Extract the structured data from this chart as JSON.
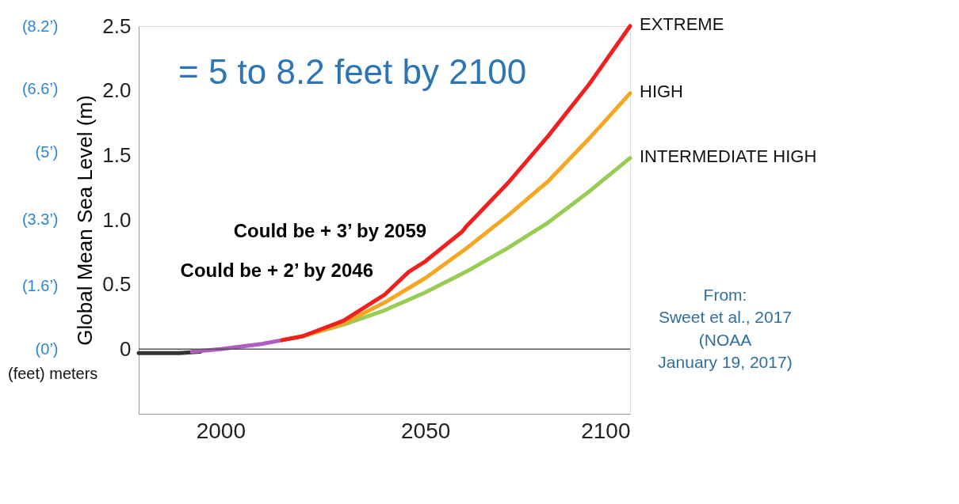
{
  "chart_data": {
    "type": "line",
    "ylabel": "Global Mean Sea Level (m)",
    "xlim": [
      1980,
      2100
    ],
    "xticks": [
      2000,
      2050,
      2100
    ],
    "ylim": [
      -0.5,
      2.5
    ],
    "yticks": [
      0,
      0.5,
      {
        "value": 1.0,
        "label": "1.0"
      },
      1.5,
      {
        "value": 2.0,
        "label": "2.0"
      },
      2.5
    ],
    "y2lim": [
      -1.64,
      8.2
    ],
    "y2ticks": [
      {
        "value": 0,
        "label": "(0’)"
      },
      {
        "value": 1.6,
        "label": "(1.6’)"
      },
      {
        "value": 3.3,
        "label": "(3.3’)"
      },
      {
        "value": 5,
        "label": "(5’)"
      },
      {
        "value": 6.6,
        "label": "(6.6’)"
      },
      {
        "value": 8.2,
        "label": "(8.2’)"
      }
    ],
    "grid": false,
    "legend": false,
    "series": [
      {
        "color": "#333333",
        "x": [
          1980,
          1985,
          1990,
          1995
        ],
        "values": [
          -0.03,
          -0.03,
          -0.03,
          -0.02
        ]
      },
      {
        "color": "#b05cc0",
        "x": [
          1993,
          2000,
          2005,
          2010,
          2015
        ],
        "values": [
          -0.02,
          0.0,
          0.02,
          0.04,
          0.07
        ]
      },
      {
        "name": "INTERMEDIATE HIGH",
        "color": "#99cc55",
        "x": [
          2015,
          2020,
          2030,
          2040,
          2050,
          2060,
          2070,
          2080,
          2090,
          2100
        ],
        "values": [
          0.07,
          0.1,
          0.19,
          0.3,
          0.44,
          0.6,
          0.78,
          0.98,
          1.22,
          1.48
        ]
      },
      {
        "name": "HIGH",
        "color": "#f5a623",
        "x": [
          2015,
          2020,
          2030,
          2040,
          2050,
          2060,
          2070,
          2080,
          2090,
          2100
        ],
        "values": [
          0.07,
          0.1,
          0.2,
          0.36,
          0.55,
          0.78,
          1.03,
          1.3,
          1.63,
          1.98
        ]
      },
      {
        "name": "EXTREME",
        "color": "#ee2020",
        "x": [
          2015,
          2020,
          2030,
          2040,
          2046,
          2050,
          2059,
          2060,
          2070,
          2080,
          2090,
          2100
        ],
        "values": [
          0.07,
          0.1,
          0.22,
          0.42,
          0.6,
          0.68,
          0.91,
          0.95,
          1.28,
          1.65,
          2.05,
          2.5
        ]
      }
    ],
    "ref_lines": [
      {
        "axis": "y",
        "value": 0,
        "color": "#555555"
      }
    ],
    "annotations": [
      "= 5 to 8.2 feet by 2100",
      "(feet) meters",
      "From:\nSweet et al., 2017\n(NOAA\nJanuary 19, 2017)",
      {
        "text": "Could be + 3’ by 2059",
        "x": 2059,
        "y": 0.91
      },
      {
        "text": "Could be + 2’ by 2046",
        "x": 2046,
        "y": 0.6
      }
    ]
  }
}
